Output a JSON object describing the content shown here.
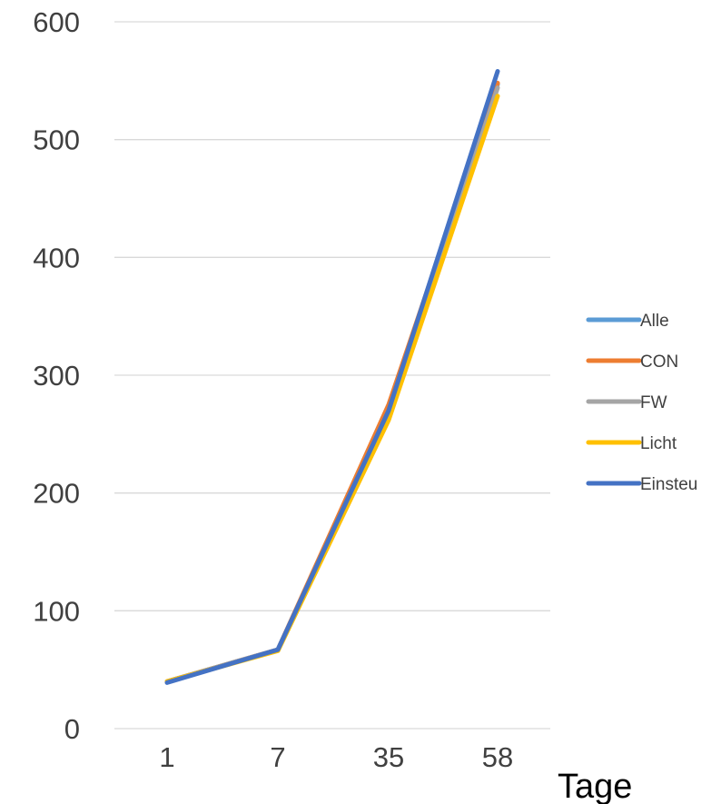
{
  "chart_data": {
    "type": "line",
    "title": "",
    "xlabel": "Tage",
    "ylabel": "",
    "categories": [
      "1",
      "7",
      "35",
      "58"
    ],
    "ylim": [
      0,
      600
    ],
    "yticks": [
      "0",
      "100",
      "200",
      "300",
      "400",
      "500",
      "600"
    ],
    "grid": true,
    "legend_position": "right",
    "series": [
      {
        "name": "Alle",
        "color": "#5B9BD5",
        "values": [
          40,
          67,
          268,
          547
        ]
      },
      {
        "name": "CON",
        "color": "#ED7D31",
        "values": [
          40,
          67,
          275,
          548
        ]
      },
      {
        "name": "FW",
        "color": "#A5A5A5",
        "values": [
          40,
          67,
          265,
          544
        ]
      },
      {
        "name": "Licht",
        "color": "#FFC000",
        "values": [
          40,
          66,
          262,
          537
        ]
      },
      {
        "name": "Einsteu",
        "color": "#4472C4",
        "values": [
          39,
          67,
          270,
          558
        ]
      }
    ]
  }
}
